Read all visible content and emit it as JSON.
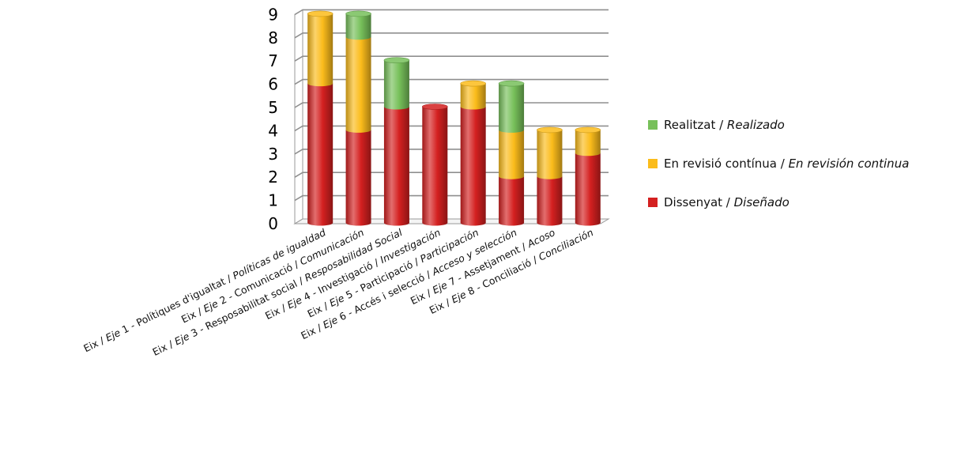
{
  "chart_data": {
    "type": "bar",
    "stacked": true,
    "style": "3d-cylinder",
    "categories": [
      {
        "plain": "Eix / ",
        "italic_a": "Eje",
        "mid": " 1 - Polítiques d'igualtat / ",
        "italic_b": "Políticas de igualdad"
      },
      {
        "plain": "Eix / ",
        "italic_a": "Eje",
        "mid": " 2 - Comunicació / ",
        "italic_b": "Comunicación"
      },
      {
        "plain": "Eix / ",
        "italic_a": "Eje",
        "mid": " 3 - Resposabilitat social / ",
        "italic_b": "Resposabilidad Social"
      },
      {
        "plain": "Eix / ",
        "italic_a": "Eje",
        "mid": " 4 - Investigació / ",
        "italic_b": "Investigación"
      },
      {
        "plain": "Eix / ",
        "italic_a": "Eje",
        "mid": " 5 - Participació / ",
        "italic_b": "Participación"
      },
      {
        "plain": "Eix / ",
        "italic_a": "Eje",
        "mid": " 6 - Accés i selecció / ",
        "italic_b": "Acceso y selección"
      },
      {
        "plain": "Eix / ",
        "italic_a": "Eje",
        "mid": " 7 - Assetjament / ",
        "italic_b": "Acoso"
      },
      {
        "plain": "Eix / ",
        "italic_a": "Eje",
        "mid": " 8 - Conciliació / ",
        "italic_b": "Conciliación"
      }
    ],
    "series": [
      {
        "name_plain": "Dissenyat / ",
        "name_italic": "Diseñado",
        "color": "#d42020",
        "values": [
          6,
          4,
          5,
          5,
          5,
          2,
          2,
          3
        ]
      },
      {
        "name_plain": "En revisió contínua / ",
        "name_italic": "En revisión continua",
        "color": "#fbbc1b",
        "values": [
          3,
          4,
          0,
          0,
          1,
          2,
          2,
          1
        ]
      },
      {
        "name_plain": "Realitzat / ",
        "name_italic": "Realizado",
        "color": "#77c05a",
        "values": [
          0,
          1,
          2,
          0,
          0,
          2,
          0,
          0
        ]
      }
    ],
    "y_ticks": [
      "0",
      "1",
      "2",
      "3",
      "4",
      "5",
      "6",
      "7",
      "8",
      "9"
    ],
    "ylim": [
      0,
      9
    ],
    "grid": true,
    "legend_position": "right",
    "legend_order": [
      2,
      1,
      0
    ]
  }
}
